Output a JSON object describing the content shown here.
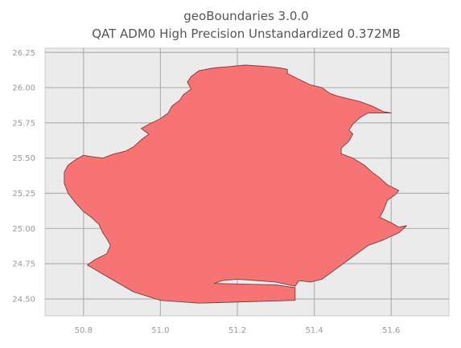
{
  "title": {
    "line1": "geoBoundaries 3.0.0",
    "line2": "QAT ADM0 High Precision Unstandardized 0.372MB"
  },
  "colors": {
    "country_fill": "#f87474",
    "country_edge": "#7a3b3b",
    "plot_background": "#ebebeb",
    "grid": "#b0b0b0"
  },
  "chart_data": {
    "type": "map",
    "region": "QAT ADM0",
    "xlim": [
      50.7,
      51.75
    ],
    "ylim": [
      24.38,
      26.28
    ],
    "x_ticks": [
      {
        "value": 50.8,
        "label": "50.8"
      },
      {
        "value": 51.0,
        "label": "51.0"
      },
      {
        "value": 51.2,
        "label": "51.2"
      },
      {
        "value": 51.4,
        "label": "51.4"
      },
      {
        "value": 51.6,
        "label": "51.6"
      }
    ],
    "y_ticks": [
      {
        "value": 24.5,
        "label": "24.50"
      },
      {
        "value": 24.75,
        "label": "24.75"
      },
      {
        "value": 25.0,
        "label": "25.00"
      },
      {
        "value": 25.25,
        "label": "25.25"
      },
      {
        "value": 25.5,
        "label": "25.50"
      },
      {
        "value": 25.75,
        "label": "25.75"
      },
      {
        "value": 26.0,
        "label": "26.00"
      },
      {
        "value": 26.25,
        "label": "26.25"
      }
    ],
    "grid": true,
    "outline": [
      [
        51.1,
        26.12
      ],
      [
        51.14,
        26.14
      ],
      [
        51.18,
        26.15
      ],
      [
        51.22,
        26.16
      ],
      [
        51.28,
        26.15
      ],
      [
        51.31,
        26.14
      ],
      [
        51.33,
        26.13
      ],
      [
        51.33,
        26.1
      ],
      [
        51.36,
        26.06
      ],
      [
        51.39,
        26.02
      ],
      [
        51.42,
        26.0
      ],
      [
        51.44,
        25.96
      ],
      [
        51.46,
        25.94
      ],
      [
        51.49,
        25.92
      ],
      [
        51.52,
        25.9
      ],
      [
        51.55,
        25.87
      ],
      [
        51.58,
        25.83
      ],
      [
        51.6,
        25.82
      ],
      [
        51.57,
        25.82
      ],
      [
        51.54,
        25.82
      ],
      [
        51.52,
        25.79
      ],
      [
        51.5,
        25.74
      ],
      [
        51.49,
        25.7
      ],
      [
        51.5,
        25.67
      ],
      [
        51.49,
        25.62
      ],
      [
        51.47,
        25.57
      ],
      [
        51.47,
        25.53
      ],
      [
        51.5,
        25.5
      ],
      [
        51.53,
        25.45
      ],
      [
        51.55,
        25.4
      ],
      [
        51.57,
        25.36
      ],
      [
        51.59,
        25.31
      ],
      [
        51.62,
        25.27
      ],
      [
        51.61,
        25.24
      ],
      [
        51.59,
        25.2
      ],
      [
        51.58,
        25.13
      ],
      [
        51.57,
        25.08
      ],
      [
        51.6,
        25.04
      ],
      [
        51.62,
        25.01
      ],
      [
        51.64,
        25.02
      ],
      [
        51.62,
        24.97
      ],
      [
        51.58,
        24.92
      ],
      [
        51.54,
        24.88
      ],
      [
        51.51,
        24.82
      ],
      [
        51.48,
        24.76
      ],
      [
        51.45,
        24.7
      ],
      [
        51.42,
        24.64
      ],
      [
        51.39,
        24.62
      ],
      [
        51.36,
        24.63
      ],
      [
        51.35,
        24.59
      ],
      [
        51.3,
        24.62
      ],
      [
        51.25,
        24.63
      ],
      [
        51.2,
        24.64
      ],
      [
        51.16,
        24.63
      ],
      [
        51.14,
        24.61
      ],
      [
        51.3,
        24.6
      ],
      [
        51.35,
        24.58
      ],
      [
        51.35,
        24.49
      ],
      [
        51.1,
        24.47
      ],
      [
        51.0,
        24.49
      ],
      [
        50.93,
        24.55
      ],
      [
        50.81,
        24.74
      ],
      [
        50.83,
        24.78
      ],
      [
        50.86,
        24.82
      ],
      [
        50.87,
        24.88
      ],
      [
        50.86,
        24.93
      ],
      [
        50.85,
        24.97
      ],
      [
        50.84,
        25.03
      ],
      [
        50.82,
        25.08
      ],
      [
        50.8,
        25.12
      ],
      [
        50.78,
        25.18
      ],
      [
        50.76,
        25.25
      ],
      [
        50.75,
        25.32
      ],
      [
        50.75,
        25.4
      ],
      [
        50.76,
        25.45
      ],
      [
        50.78,
        25.49
      ],
      [
        50.8,
        25.52
      ],
      [
        50.82,
        25.51
      ],
      [
        50.85,
        25.5
      ],
      [
        50.88,
        25.53
      ],
      [
        50.91,
        25.55
      ],
      [
        50.93,
        25.58
      ],
      [
        50.95,
        25.63
      ],
      [
        50.97,
        25.67
      ],
      [
        50.95,
        25.71
      ],
      [
        50.97,
        25.74
      ],
      [
        51.0,
        25.78
      ],
      [
        51.02,
        25.82
      ],
      [
        51.03,
        25.87
      ],
      [
        51.05,
        25.91
      ],
      [
        51.06,
        25.95
      ],
      [
        51.08,
        25.99
      ],
      [
        51.07,
        26.04
      ],
      [
        51.08,
        26.08
      ]
    ]
  }
}
